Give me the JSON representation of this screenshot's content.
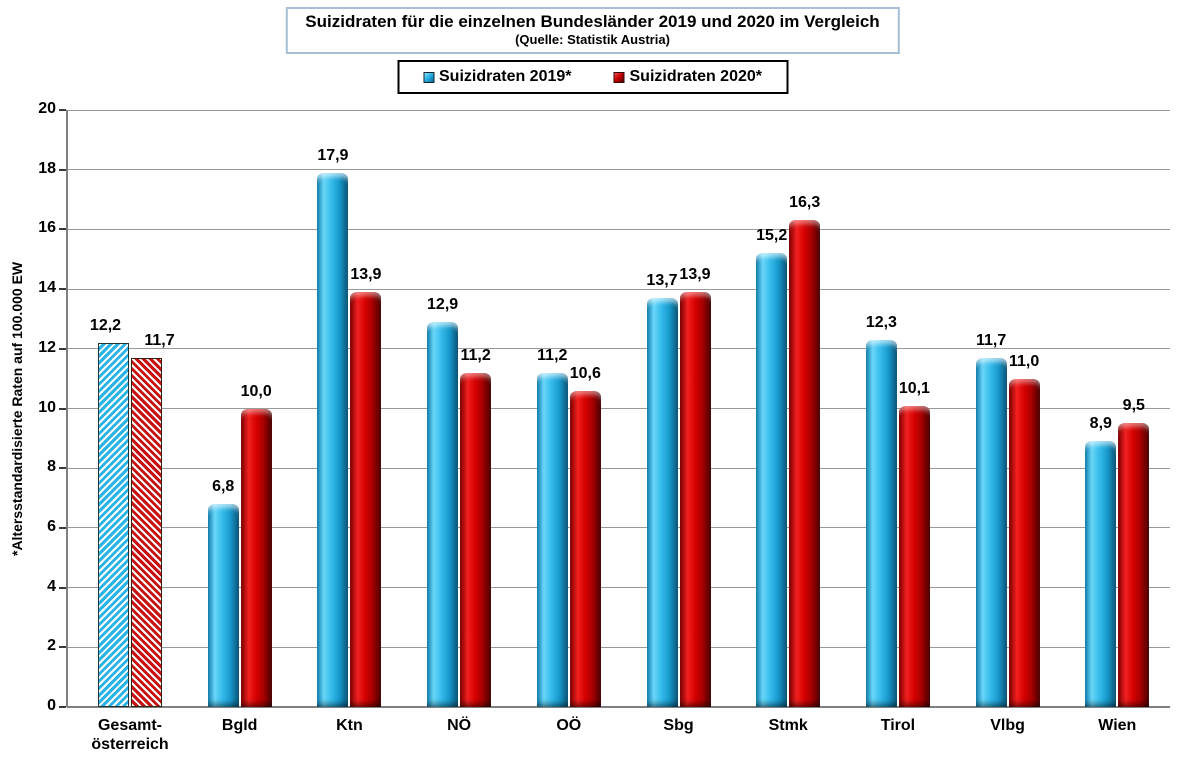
{
  "chart_data": {
    "type": "bar",
    "title": "Suizidraten für die einzelnen Bundesländer 2019 und 2020 im Vergleich",
    "subtitle": "(Quelle: Statistik Austria)",
    "ylabel": "*Altersstandardisierte Raten auf 100.000 EW",
    "categories": [
      "Gesamt-\nösterreich",
      "Bgld",
      "Ktn",
      "NÖ",
      "OÖ",
      "Sbg",
      "Stmk",
      "Tirol",
      "Vlbg",
      "Wien"
    ],
    "series": [
      {
        "name": "Suizidraten 2019*",
        "color": "#29b4e5",
        "values": [
          12.2,
          6.8,
          17.9,
          12.9,
          11.2,
          13.7,
          15.2,
          12.3,
          11.7,
          8.9
        ]
      },
      {
        "name": "Suizidraten 2020*",
        "color": "#cc0000",
        "values": [
          11.7,
          10.0,
          13.9,
          11.2,
          10.6,
          13.9,
          16.3,
          10.1,
          11.0,
          9.5
        ]
      }
    ],
    "first_category_style": "diagonal-hatched-bars",
    "ylim": [
      0,
      20
    ],
    "yticks": [
      0,
      2,
      4,
      6,
      8,
      10,
      12,
      14,
      16,
      18,
      20
    ],
    "grid": "horizontal",
    "legend_position": "top",
    "value_labels": true,
    "decimal_separator": ",",
    "gridline_color": "#999999",
    "axis_color": "#808080"
  }
}
